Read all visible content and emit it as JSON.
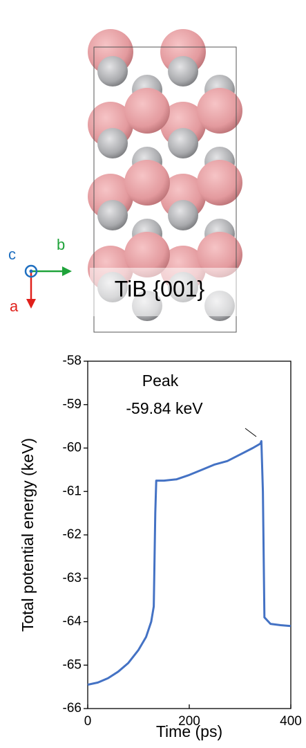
{
  "structure": {
    "label": "TiB {001}",
    "axes": [
      "a",
      "b",
      "c"
    ]
  },
  "chart_data": {
    "type": "line",
    "x": [
      0,
      20,
      40,
      60,
      80,
      100,
      115,
      125,
      130,
      133,
      135,
      150,
      175,
      200,
      225,
      250,
      275,
      300,
      325,
      340,
      342,
      345,
      348,
      360,
      380,
      400
    ],
    "values": [
      -65.45,
      -65.4,
      -65.3,
      -65.15,
      -64.95,
      -64.65,
      -64.35,
      -64.0,
      -63.65,
      -61.5,
      -60.75,
      -60.75,
      -60.72,
      -60.62,
      -60.5,
      -60.38,
      -60.3,
      -60.15,
      -60.0,
      -59.9,
      -59.84,
      -61.0,
      -63.9,
      -64.05,
      -64.08,
      -64.1
    ],
    "color": "#4472c4",
    "xlim": [
      0,
      400
    ],
    "xticks": [
      0,
      200,
      400
    ],
    "ylim": [
      -66,
      -58
    ],
    "yticks": [
      -66,
      -65,
      -64,
      -63,
      -62,
      -61,
      -60,
      -59,
      -58
    ],
    "x_label": "Time (ps)",
    "y_label": "Total potential energy (keV)",
    "annotations": [
      "Peak",
      "-59.84 keV"
    ]
  }
}
